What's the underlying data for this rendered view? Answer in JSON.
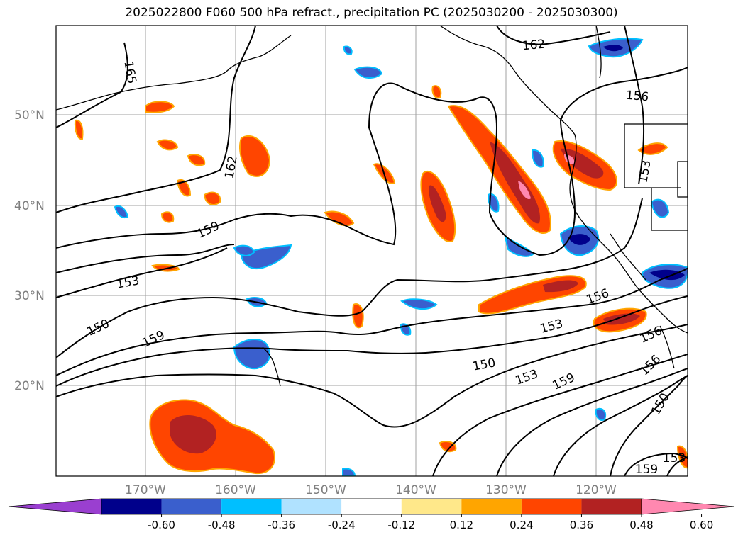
{
  "title": "2025022800 F060 500 hPa refract., precipitation PC (2025030200 - 2025030300)",
  "latitude_labels": [
    "50°N",
    "40°N",
    "30°N",
    "20°N"
  ],
  "longitude_labels": [
    "170°W",
    "160°W",
    "150°W",
    "140°W",
    "130°W",
    "120°W"
  ],
  "contour_labels": [
    {
      "text": "165",
      "rot": 80
    },
    {
      "text": "162",
      "rot": -5
    },
    {
      "text": "156",
      "rot": 5
    },
    {
      "text": "162",
      "rot": -80
    },
    {
      "text": "153",
      "rot": -80
    },
    {
      "text": "159",
      "rot": -25
    },
    {
      "text": "153",
      "rot": -10
    },
    {
      "text": "156",
      "rot": -20
    },
    {
      "text": "153",
      "rot": -15
    },
    {
      "text": "150",
      "rot": -25
    },
    {
      "text": "159",
      "rot": -25
    },
    {
      "text": "156",
      "rot": -25
    },
    {
      "text": "150",
      "rot": -10
    },
    {
      "text": "153",
      "rot": -20
    },
    {
      "text": "159",
      "rot": -25
    },
    {
      "text": "156",
      "rot": -45
    },
    {
      "text": "150",
      "rot": -60
    },
    {
      "text": "153",
      "rot": 0
    },
    {
      "text": "159",
      "rot": 0
    }
  ],
  "colorbar": {
    "ticks": [
      "-0.60",
      "-0.48",
      "-0.36",
      "-0.24",
      "-0.12",
      "0.12",
      "0.24",
      "0.36",
      "0.48",
      "0.60"
    ],
    "colors": [
      "#9a3fd0",
      "#00008b",
      "#3a5fcd",
      "#00bfff",
      "#b0e2ff",
      "#ffffff",
      "#ffe88a",
      "#ffa500",
      "#ff4500",
      "#b22222",
      "#ff88b0"
    ]
  },
  "palette": {
    "contour": "#000000",
    "coast": "#000000",
    "grid": "#a0a0a0",
    "neg_strong": "#00008b",
    "neg_mid": "#3a5fcd",
    "neg_light": "#00bfff",
    "pos_light": "#ffe88a",
    "pos_mid": "#ffa500",
    "pos_strong": "#ff4500",
    "pos_dark": "#b22222",
    "pos_max": "#ff88b0"
  }
}
